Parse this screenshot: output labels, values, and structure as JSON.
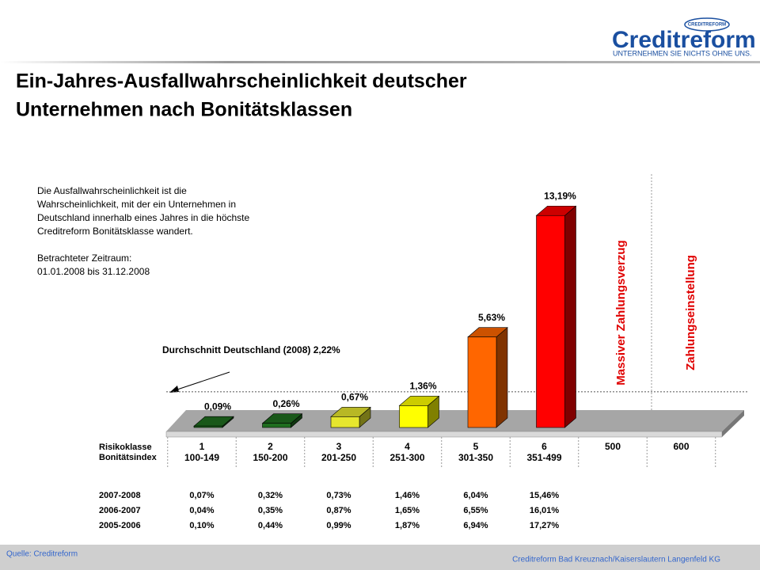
{
  "header": {
    "logo": "Creditreform",
    "logo_badge": "CREDITREFORM",
    "tagline": "UNTERNEHMEN SIE NICHTS OHNE UNS."
  },
  "title": [
    "Ein-Jahres-Ausfallwahrscheinlichkeit deutscher",
    "Unternehmen nach Bonitätsklassen"
  ],
  "description": [
    "Die Ausfallwahrscheinlichkeit ist die",
    "Wahrscheinlichkeit,  mit der ein Unternehmen  in",
    "Deutschland innerhalb eines Jahres in die höchste",
    "Creditreform Bonitätsklasse wandert.",
    "",
    "Betrachteter Zeitraum:",
    "01.01.2008  bis 31.12.2008"
  ],
  "chart_data": {
    "type": "bar3d",
    "categories": [
      "1",
      "2",
      "3",
      "4",
      "5",
      "6",
      "500",
      "600"
    ],
    "index_labels": [
      "100-149",
      "150-200",
      "201-250",
      "251-300",
      "301-350",
      "351-499",
      null,
      null
    ],
    "row_labels": [
      "Risikoklasse",
      "Bonitätsindex"
    ],
    "values": [
      0.09,
      0.26,
      0.67,
      1.36,
      5.63,
      13.19,
      null,
      null
    ],
    "value_labels": [
      "0,09%",
      "0,26%",
      "0,67%",
      "1,36%",
      "5,63%",
      "13,19%",
      null,
      null
    ],
    "colors": [
      "#1f6e1f",
      "#1f6e1f",
      "#e6e62e",
      "#ffff00",
      "#ff6600",
      "#ff0000",
      null,
      null
    ],
    "average": {
      "value": 2.22,
      "label": "Durchschnitt Deutschland (2008) 2,22%"
    },
    "zone_labels": [
      "Massiver Zahlungsverzug",
      "Zahlungseinstellung"
    ],
    "table": {
      "rows": [
        {
          "label": "2007-2008",
          "values": [
            "0,07%",
            "0,32%",
            "0,73%",
            "1,46%",
            "6,04%",
            "15,46%"
          ]
        },
        {
          "label": "2006-2007",
          "values": [
            "0,04%",
            "0,35%",
            "0,87%",
            "1,65%",
            "6,55%",
            "16,01%"
          ]
        },
        {
          "label": "2005-2006",
          "values": [
            "0,10%",
            "0,44%",
            "0,99%",
            "1,87%",
            "6,94%",
            "17,27%"
          ]
        }
      ]
    }
  },
  "footer": {
    "source": "Quelle:  Creditreform",
    "company": "Creditreform Bad Kreuznach/Kaiserslautern Langenfeld KG"
  }
}
